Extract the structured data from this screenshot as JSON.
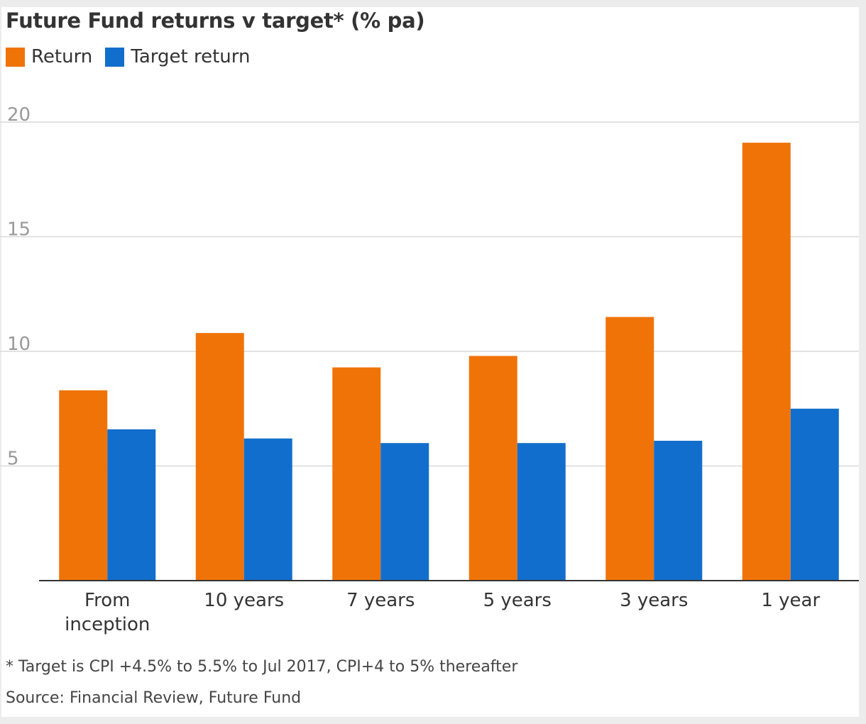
{
  "colors": {
    "return": "#f07308",
    "target": "#126ecc",
    "grid": "#d9d9d9",
    "axis": "#333333",
    "tick_text": "#999999",
    "category_text": "#333333"
  },
  "chart_data": {
    "type": "bar",
    "title": "Future Fund returns v target* (% pa)",
    "categories": [
      "From inception",
      "10 years",
      "7 years",
      "5 years",
      "3 years",
      "1 year"
    ],
    "category_lines": [
      [
        "From",
        "inception"
      ],
      [
        "10 years"
      ],
      [
        "7 years"
      ],
      [
        "5 years"
      ],
      [
        "3 years"
      ],
      [
        "1 year"
      ]
    ],
    "series": [
      {
        "name": "Return",
        "values": [
          8.3,
          10.8,
          9.3,
          9.8,
          11.5,
          19.1
        ]
      },
      {
        "name": "Target return",
        "values": [
          6.6,
          6.2,
          6.0,
          6.0,
          6.1,
          7.5
        ]
      }
    ],
    "ylim": [
      0,
      20
    ],
    "yticks": [
      5,
      10,
      15,
      20
    ],
    "ytick_labels": [
      "5",
      "10",
      "15",
      "20"
    ],
    "grid": true,
    "legend_position": "top-left",
    "footnote": "* Target is CPI +4.5% to 5.5% to Jul 2017, CPI+4 to 5% thereafter",
    "source": "Source: Financial Review, Future Fund"
  }
}
